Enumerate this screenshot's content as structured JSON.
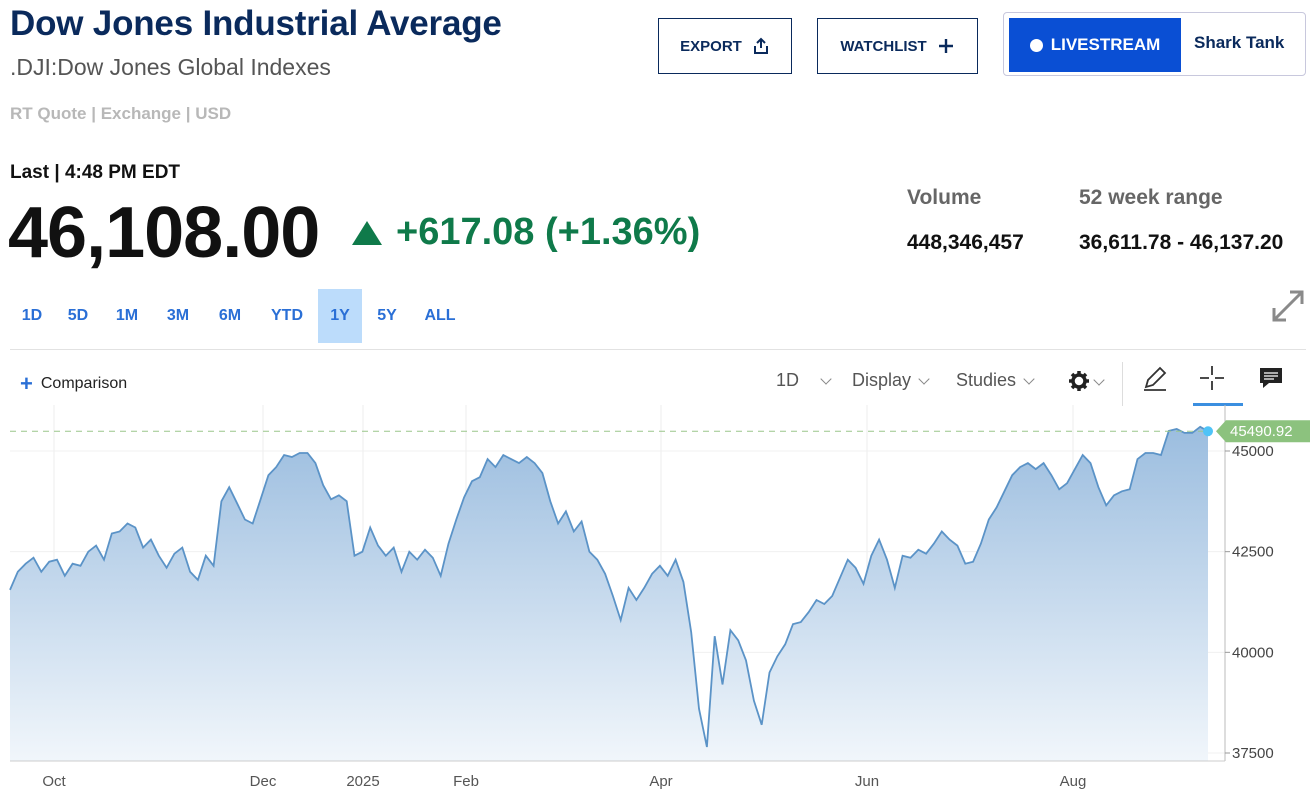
{
  "header": {
    "title": "Dow Jones Industrial Average",
    "subtitle": ".DJI:Dow Jones Global Indexes",
    "rtquote": "RT Quote | Exchange | USD"
  },
  "actions": {
    "export_label": "EXPORT",
    "watchlist_label": "WATCHLIST",
    "livestream_label": "LIVESTREAM",
    "shark_tank_label": "Shark Tank"
  },
  "quote": {
    "last_label": "Last | 4:48 PM EDT",
    "price": "46,108.00",
    "change": "+617.08 (+1.36%)",
    "volume_label": "Volume",
    "volume": "448,346,457",
    "range_label": "52 week range",
    "range": "36,611.78 - 46,137.20"
  },
  "range_tabs": [
    "1D",
    "5D",
    "1M",
    "3M",
    "6M",
    "YTD",
    "1Y",
    "5Y",
    "ALL"
  ],
  "active_range": "1Y",
  "toolbar": {
    "comparison_label": "Comparison",
    "interval_label": "1D",
    "display_label": "Display",
    "studies_label": "Studies"
  },
  "colors": {
    "brand_navy": "#0a2a5c",
    "positive_green": "#0f7a4a",
    "live_blue": "#0a4fd4",
    "line_blue": "#5b93c7",
    "tab_active_bg": "#bcdcfb"
  },
  "chart_data": {
    "type": "area",
    "title": "",
    "xlabel": "",
    "ylabel": "",
    "x_tick_labels": [
      "Oct",
      "Dec",
      "2025",
      "Feb",
      "Apr",
      "Jun",
      "Aug"
    ],
    "y_ticks": [
      37500,
      40000,
      42500,
      45000
    ],
    "ylim": [
      37500,
      45800
    ],
    "reference_line": 45490.92,
    "reference_label": "45490.92",
    "grid": "vertical",
    "series": [
      {
        "values": [
          41550,
          42000,
          42200,
          42350,
          42000,
          42250,
          42300,
          41900,
          42200,
          42150,
          42500,
          42650,
          42300,
          42950,
          43000,
          43200,
          43100,
          42600,
          42800,
          42400,
          42100,
          42450,
          42600,
          42000,
          41800,
          42400,
          42150,
          43750,
          44100,
          43700,
          43300,
          43200,
          43800,
          44400,
          44600,
          44900,
          44850,
          44950,
          44950,
          44700,
          44150,
          43800,
          43900,
          43750,
          42400,
          42500,
          43100,
          42650,
          42400,
          42600,
          42000,
          42500,
          42300,
          42550,
          42350,
          41900,
          42700,
          43300,
          43850,
          44250,
          44350,
          44800,
          44600,
          44900,
          44800,
          44700,
          44850,
          44700,
          44450,
          43750,
          43200,
          43500,
          43000,
          43250,
          42500,
          42300,
          41950,
          41400,
          40800,
          41600,
          41300,
          41600,
          41950,
          42150,
          41900,
          42300,
          41750,
          40500,
          38600,
          37650,
          40400,
          39200,
          40550,
          40300,
          39800,
          38800,
          38200,
          39500,
          39900,
          40200,
          40700,
          40750,
          41000,
          41300,
          41200,
          41400,
          41850,
          42300,
          42100,
          41700,
          42400,
          42800,
          42300,
          41600,
          42400,
          42350,
          42550,
          42450,
          42700,
          43000,
          42800,
          42650,
          42200,
          42250,
          42700,
          43300,
          43600,
          44000,
          44400,
          44600,
          44700,
          44550,
          44700,
          44400,
          44050,
          44200,
          44550,
          44900,
          44700,
          44100,
          43650,
          43900,
          44000,
          44050,
          44800,
          44950,
          44950,
          44900,
          45500,
          45550,
          45450,
          45450,
          45600,
          45490
        ]
      }
    ]
  }
}
